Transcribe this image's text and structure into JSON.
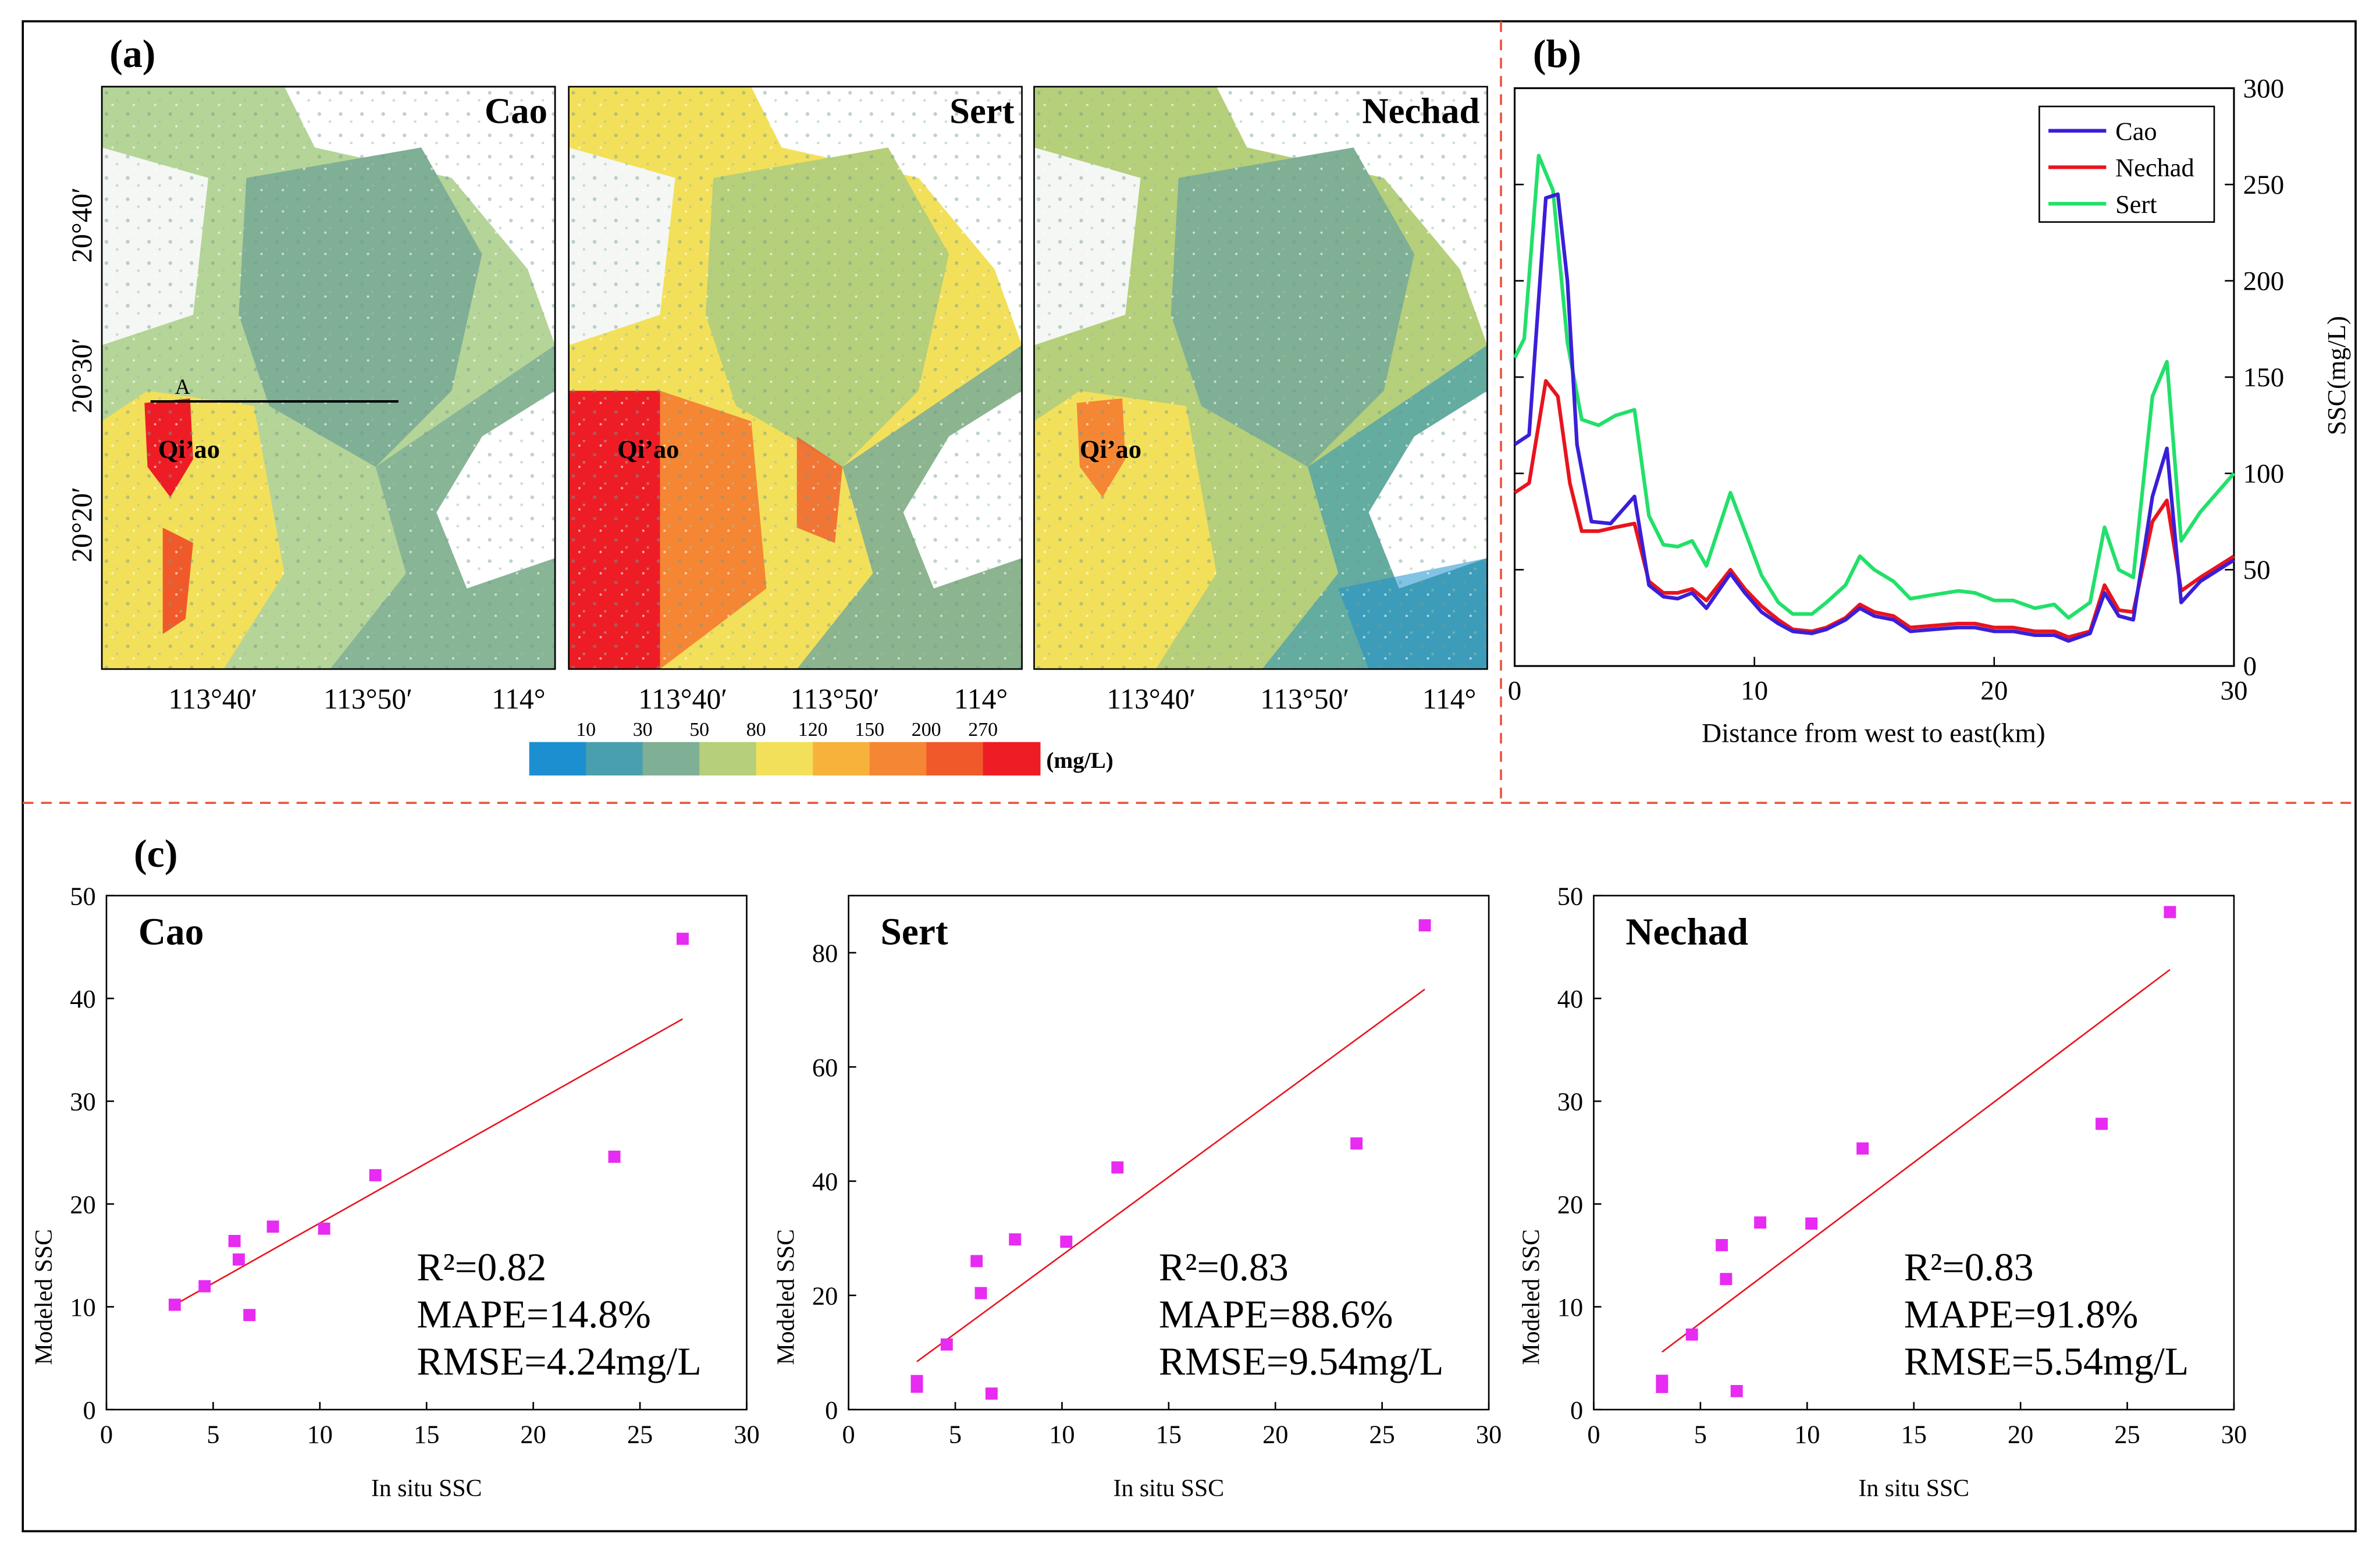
{
  "figure": {
    "panel_labels": {
      "a": "(a)",
      "b": "(b)",
      "c": "(c)"
    },
    "maps": [
      {
        "title": "Cao",
        "place_label": "Qi’ao",
        "transect_label": "A",
        "has_transect": true
      },
      {
        "title": "Sert",
        "place_label": "Qi’ao",
        "has_transect": false
      },
      {
        "title": "Nechad",
        "place_label": "Qi’ao",
        "has_transect": false
      }
    ],
    "map_lat_ticks": [
      "20°40′",
      "20°30′",
      "20°20′"
    ],
    "map_lon_ticks": [
      "113°40′",
      "113°50′",
      "114°"
    ],
    "colorbar": {
      "ticks": [
        "10",
        "30",
        "50",
        "80",
        "120",
        "150",
        "200",
        "270"
      ],
      "unit": "(mg/L)",
      "colors": [
        "#1b8fd0",
        "#4a9fae",
        "#7faf95",
        "#b5cf7a",
        "#f3e05a",
        "#f7b23b",
        "#f58634",
        "#f05a2a",
        "#ee1c25"
      ]
    },
    "legend": [
      "Cao",
      "Nechad",
      "Sert"
    ]
  },
  "chart_data": [
    {
      "type": "line",
      "panel": "(b)",
      "title": "",
      "xlabel": "Distance from west to east(km)",
      "ylabel": "SSC(mg/L)",
      "xlim": [
        0,
        30
      ],
      "ylim": [
        0,
        300
      ],
      "xticks": [
        "0",
        "10",
        "20",
        "30"
      ],
      "yticks": [
        "0",
        "50",
        "100",
        "150",
        "200",
        "250",
        "300"
      ],
      "legend_position": "top-right",
      "series": [
        {
          "name": "Cao",
          "color": "#3a1fd8",
          "points": [
            [
              0,
              115
            ],
            [
              0.6,
              120
            ],
            [
              1.3,
              243
            ],
            [
              1.8,
              245
            ],
            [
              2.2,
              200
            ],
            [
              2.6,
              115
            ],
            [
              3.2,
              75
            ],
            [
              4,
              74
            ],
            [
              5,
              88
            ],
            [
              5.6,
              42
            ],
            [
              6.2,
              36
            ],
            [
              6.8,
              35
            ],
            [
              7.4,
              38
            ],
            [
              8,
              30
            ],
            [
              9,
              48
            ],
            [
              9.6,
              38
            ],
            [
              10.3,
              28
            ],
            [
              11,
              22
            ],
            [
              11.6,
              18
            ],
            [
              12.4,
              17
            ],
            [
              13,
              19
            ],
            [
              13.8,
              24
            ],
            [
              14.4,
              30
            ],
            [
              15,
              26
            ],
            [
              15.8,
              24
            ],
            [
              16.5,
              18
            ],
            [
              17.5,
              19
            ],
            [
              18.5,
              20
            ],
            [
              19.2,
              20
            ],
            [
              20,
              18
            ],
            [
              20.8,
              18
            ],
            [
              21.7,
              16
            ],
            [
              22.5,
              16
            ],
            [
              23.1,
              13
            ],
            [
              24,
              17
            ],
            [
              24.6,
              38
            ],
            [
              25.2,
              26
            ],
            [
              25.8,
              24
            ],
            [
              26.6,
              88
            ],
            [
              27.2,
              113
            ],
            [
              27.8,
              33
            ],
            [
              28.6,
              44
            ],
            [
              30,
              55
            ]
          ]
        },
        {
          "name": "Nechad",
          "color": "#e8141e",
          "points": [
            [
              0,
              90
            ],
            [
              0.6,
              95
            ],
            [
              1.3,
              148
            ],
            [
              1.8,
              140
            ],
            [
              2.3,
              95
            ],
            [
              2.8,
              70
            ],
            [
              3.5,
              70
            ],
            [
              4.2,
              72
            ],
            [
              5,
              74
            ],
            [
              5.6,
              44
            ],
            [
              6.2,
              38
            ],
            [
              6.8,
              38
            ],
            [
              7.4,
              40
            ],
            [
              8,
              34
            ],
            [
              9,
              50
            ],
            [
              9.6,
              40
            ],
            [
              10.3,
              31
            ],
            [
              11,
              24
            ],
            [
              11.6,
              19
            ],
            [
              12.4,
              18
            ],
            [
              13,
              20
            ],
            [
              13.8,
              25
            ],
            [
              14.4,
              32
            ],
            [
              15,
              28
            ],
            [
              15.8,
              26
            ],
            [
              16.5,
              20
            ],
            [
              17.5,
              21
            ],
            [
              18.5,
              22
            ],
            [
              19.2,
              22
            ],
            [
              20,
              20
            ],
            [
              20.8,
              20
            ],
            [
              21.7,
              18
            ],
            [
              22.5,
              18
            ],
            [
              23.1,
              15
            ],
            [
              24,
              18
            ],
            [
              24.6,
              42
            ],
            [
              25.2,
              29
            ],
            [
              25.8,
              28
            ],
            [
              26.6,
              75
            ],
            [
              27.2,
              86
            ],
            [
              27.8,
              39
            ],
            [
              28.6,
              46
            ],
            [
              30,
              57
            ]
          ]
        },
        {
          "name": "Sert",
          "color": "#22e06a",
          "points": [
            [
              0,
              160
            ],
            [
              0.4,
              170
            ],
            [
              1,
              265
            ],
            [
              1.6,
              247
            ],
            [
              2.2,
              168
            ],
            [
              2.8,
              128
            ],
            [
              3.5,
              125
            ],
            [
              4.2,
              130
            ],
            [
              5,
              133
            ],
            [
              5.6,
              78
            ],
            [
              6.2,
              63
            ],
            [
              6.8,
              62
            ],
            [
              7.4,
              65
            ],
            [
              8,
              52
            ],
            [
              9,
              90
            ],
            [
              9.6,
              70
            ],
            [
              10.3,
              47
            ],
            [
              11,
              33
            ],
            [
              11.6,
              27
            ],
            [
              12.4,
              27
            ],
            [
              13,
              33
            ],
            [
              13.8,
              42
            ],
            [
              14.4,
              57
            ],
            [
              15,
              50
            ],
            [
              15.8,
              44
            ],
            [
              16.5,
              35
            ],
            [
              17.5,
              37
            ],
            [
              18.5,
              39
            ],
            [
              19.2,
              38
            ],
            [
              20,
              34
            ],
            [
              20.8,
              34
            ],
            [
              21.7,
              30
            ],
            [
              22.5,
              32
            ],
            [
              23.1,
              25
            ],
            [
              24,
              33
            ],
            [
              24.6,
              72
            ],
            [
              25.2,
              50
            ],
            [
              25.8,
              46
            ],
            [
              26.6,
              140
            ],
            [
              27.2,
              158
            ],
            [
              27.8,
              65
            ],
            [
              28.6,
              80
            ],
            [
              30,
              100
            ]
          ]
        }
      ]
    },
    {
      "type": "scatter",
      "panel": "(c)",
      "title": "Cao",
      "xlabel": "In situ SSC",
      "ylabel": "Modeled SSC",
      "xlim": [
        0,
        30
      ],
      "ylim": [
        0,
        50
      ],
      "xticks": [
        "0",
        "5",
        "10",
        "15",
        "20",
        "25",
        "30"
      ],
      "yticks": [
        "0",
        "10",
        "20",
        "30",
        "40",
        "50"
      ],
      "points": [
        [
          3.2,
          10.2
        ],
        [
          4.6,
          12
        ],
        [
          6,
          16.4
        ],
        [
          6.2,
          14.6
        ],
        [
          6.7,
          9.2
        ],
        [
          7.8,
          17.8
        ],
        [
          10.2,
          17.6
        ],
        [
          12.6,
          22.8
        ],
        [
          23.8,
          24.6
        ],
        [
          27,
          45.8
        ]
      ],
      "fit_line": [
        [
          3.2,
          10.2
        ],
        [
          27,
          38
        ]
      ],
      "stats": [
        "R²=0.82",
        "MAPE=14.8%",
        "RMSE=4.24mg/L"
      ]
    },
    {
      "type": "scatter",
      "panel": "(c)",
      "title": "Sert",
      "xlabel": "In situ SSC",
      "ylabel": "Modeled SSC",
      "xlim": [
        0,
        30
      ],
      "ylim": [
        0,
        90
      ],
      "xticks": [
        "0",
        "5",
        "10",
        "15",
        "20",
        "25",
        "30"
      ],
      "yticks": [
        "0",
        "20",
        "40",
        "60",
        "80"
      ],
      "points": [
        [
          3.2,
          4
        ],
        [
          3.2,
          5
        ],
        [
          4.6,
          11.4
        ],
        [
          6,
          26
        ],
        [
          6.2,
          20.4
        ],
        [
          6.7,
          2.8
        ],
        [
          7.8,
          29.8
        ],
        [
          10.2,
          29.4
        ],
        [
          12.6,
          42.4
        ],
        [
          23.8,
          46.6
        ],
        [
          27,
          84.8
        ]
      ],
      "fit_line": [
        [
          3.2,
          8.4
        ],
        [
          27,
          73.6
        ]
      ],
      "stats": [
        "R²=0.83",
        "MAPE=88.6%",
        "RMSE=9.54mg/L"
      ]
    },
    {
      "type": "scatter",
      "panel": "(c)",
      "title": "Nechad",
      "xlabel": "In situ SSC",
      "ylabel": "Modeled SSC",
      "xlim": [
        0,
        30
      ],
      "ylim": [
        0,
        50
      ],
      "xticks": [
        "0",
        "5",
        "10",
        "15",
        "20",
        "25",
        "30"
      ],
      "yticks": [
        "0",
        "10",
        "20",
        "30",
        "40",
        "50"
      ],
      "points": [
        [
          3.2,
          2.2
        ],
        [
          3.2,
          2.8
        ],
        [
          4.6,
          7.3
        ],
        [
          6,
          16
        ],
        [
          6.2,
          12.7
        ],
        [
          6.7,
          1.8
        ],
        [
          7.8,
          18.2
        ],
        [
          10.2,
          18.1
        ],
        [
          12.6,
          25.4
        ],
        [
          23.8,
          27.8
        ],
        [
          27,
          48.4
        ]
      ],
      "fit_line": [
        [
          3.2,
          5.6
        ],
        [
          27,
          42.8
        ]
      ],
      "stats": [
        "R²=0.83",
        "MAPE=91.8%",
        "RMSE=5.54mg/L"
      ]
    }
  ]
}
